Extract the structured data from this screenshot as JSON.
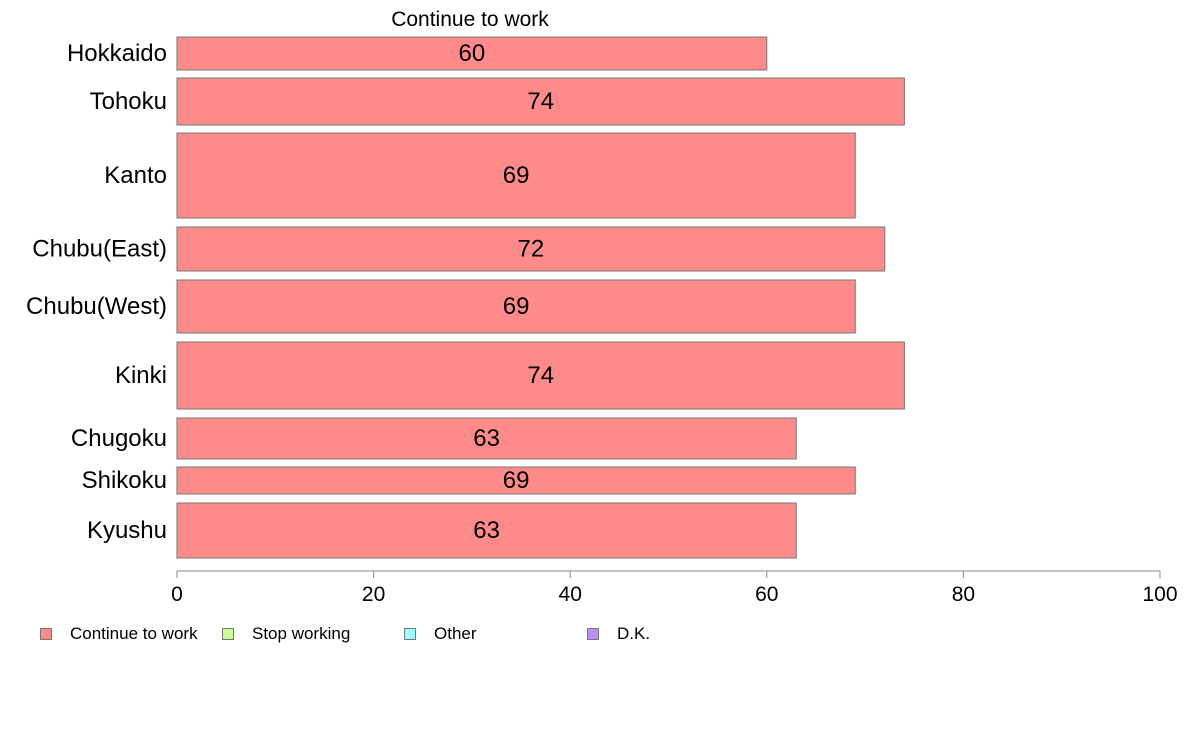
{
  "chart_data": {
    "type": "bar",
    "orientation": "horizontal",
    "title": "Continue to work",
    "categories": [
      "Hokkaido",
      "Tohoku",
      "Kanto",
      "Chubu(East)",
      "Chubu(West)",
      "Kinki",
      "Chugoku",
      "Shikoku",
      "Kyushu"
    ],
    "series": [
      {
        "name": "Continue to work",
        "color": "#ff8a8a",
        "values": [
          60,
          74,
          69,
          72,
          69,
          74,
          63,
          69,
          63
        ]
      }
    ],
    "data_labels": [
      "60",
      "74",
      "69",
      "72",
      "69",
      "74",
      "63",
      "69",
      "63"
    ],
    "xlim": [
      0,
      100
    ],
    "xticks": [
      0,
      20,
      40,
      60,
      80,
      100
    ],
    "grid": false,
    "legend": {
      "position": "bottom-left",
      "items": [
        {
          "label": "Continue to work",
          "color": "#ff8a8a"
        },
        {
          "label": "Stop working",
          "color": "#ccff99"
        },
        {
          "label": "Other",
          "color": "#99ffff"
        },
        {
          "label": "D.K.",
          "color": "#c08cf5"
        }
      ]
    }
  }
}
